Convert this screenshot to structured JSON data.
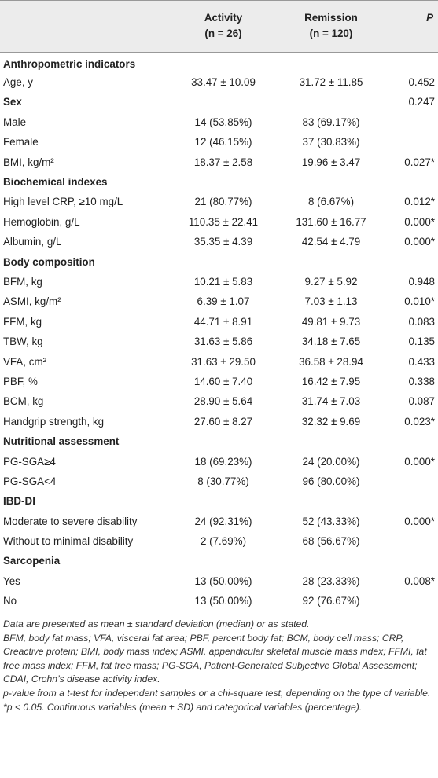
{
  "table": {
    "header": {
      "activity": [
        "Activity",
        "(n = 26)"
      ],
      "remission": [
        "Remission",
        "(n = 120)"
      ],
      "p": "P"
    },
    "rows": [
      {
        "section": "Anthropometric indicators"
      },
      {
        "label": "Age, y",
        "activity": "33.47 ± 10.09",
        "remission": "31.72 ± 11.85",
        "p": "0.452"
      },
      {
        "section": "Sex",
        "p": "0.247"
      },
      {
        "label": "Male",
        "activity": "14 (53.85%)",
        "remission": "83 (69.17%)"
      },
      {
        "label": "Female",
        "activity": "12 (46.15%)",
        "remission": "37 (30.83%)"
      },
      {
        "label": "BMI, kg/m²",
        "activity": "18.37 ± 2.58",
        "remission": "19.96 ± 3.47",
        "p": "0.027*"
      },
      {
        "section": "Biochemical indexes"
      },
      {
        "label": "High level CRP, ≥10 mg/L",
        "activity": "21 (80.77%)",
        "remission": "8 (6.67%)",
        "p": "0.012*"
      },
      {
        "label": "Hemoglobin, g/L",
        "activity": "110.35 ± 22.41",
        "remission": "131.60 ± 16.77",
        "p": "0.000*"
      },
      {
        "label": "Albumin, g/L",
        "activity": "35.35 ± 4.39",
        "remission": "42.54 ± 4.79",
        "p": "0.000*"
      },
      {
        "section": "Body composition"
      },
      {
        "label": "BFM, kg",
        "activity": "10.21 ± 5.83",
        "remission": "9.27 ± 5.92",
        "p": "0.948"
      },
      {
        "label": "ASMI, kg/m²",
        "activity": "6.39 ± 1.07",
        "remission": "7.03 ± 1.13",
        "p": "0.010*"
      },
      {
        "label": "FFM, kg",
        "activity": "44.71 ± 8.91",
        "remission": "49.81 ± 9.73",
        "p": "0.083"
      },
      {
        "label": "TBW, kg",
        "activity": "31.63 ± 5.86",
        "remission": "34.18 ± 7.65",
        "p": "0.135"
      },
      {
        "label": "VFA, cm²",
        "activity": "31.63 ± 29.50",
        "remission": "36.58 ± 28.94",
        "p": "0.433"
      },
      {
        "label": "PBF, %",
        "activity": "14.60 ± 7.40",
        "remission": "16.42 ± 7.95",
        "p": "0.338"
      },
      {
        "label": "BCM, kg",
        "activity": "28.90 ± 5.64",
        "remission": "31.74 ± 7.03",
        "p": "0.087"
      },
      {
        "label": "Handgrip strength, kg",
        "activity": "27.60 ± 8.27",
        "remission": "32.32 ± 9.69",
        "p": "0.023*"
      },
      {
        "section": "Nutritional assessment"
      },
      {
        "label": "PG-SGA≥4",
        "activity": "18 (69.23%)",
        "remission": "24 (20.00%)",
        "p": "0.000*"
      },
      {
        "label": "PG-SGA<4",
        "activity": "8 (30.77%)",
        "remission": "96 (80.00%)"
      },
      {
        "section": "IBD-DI"
      },
      {
        "label": "Moderate to severe disability",
        "activity": "24 (92.31%)",
        "remission": "52 (43.33%)",
        "p": "0.000*"
      },
      {
        "label": "Without to minimal disability",
        "activity": "2 (7.69%)",
        "remission": "68 (56.67%)"
      },
      {
        "section": "Sarcopenia"
      },
      {
        "label": "Yes",
        "activity": "13 (50.00%)",
        "remission": "28 (23.33%)",
        "p": "0.008*"
      },
      {
        "label": "No",
        "activity": "13 (50.00%)",
        "remission": "92 (76.67%)"
      }
    ],
    "notes": [
      "Data are presented as mean ± standard deviation (median) or as stated.",
      "BFM, body fat mass; VFA, visceral fat area; PBF, percent body fat; BCM, body cell mass; CRP, Creactive protein; BMI, body mass index; ASMI, appendicular skeletal muscle mass index; FFMI, fat free mass index; FFM, fat free mass; PG-SGA, Patient-Generated Subjective Global Assessment; CDAI, Crohn’s disease activity index.",
      "p-value from a t-test for independent samples or a chi-square test, depending on the type of variable. *p < 0.05. Continuous variables (mean ± SD) and categorical variables (percentage)."
    ]
  }
}
